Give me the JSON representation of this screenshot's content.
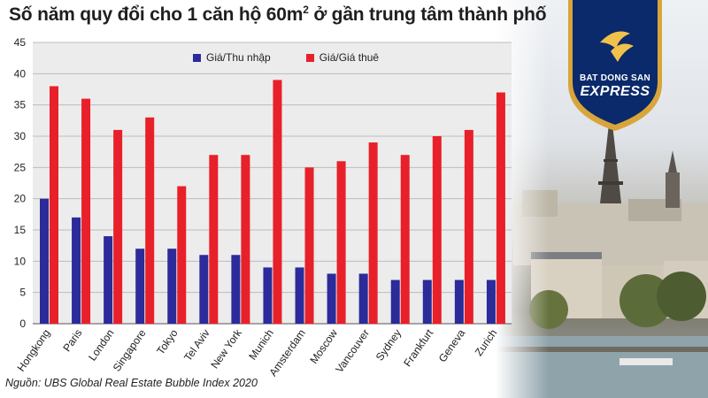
{
  "title_main": "Số năm quy đổi cho 1 căn hộ 60m",
  "title_sup": "2",
  "title_rest": " ở gần trung tâm thành phố",
  "source": "Nguồn: UBS Global Real Estate Bubble Index 2020",
  "logo": {
    "line1": "BAT DONG SAN",
    "line2": "EXPRESS"
  },
  "colors": {
    "income": "#2b2b9a",
    "rent": "#e8202a",
    "grid": "#bdbdbd",
    "chart_bg": "#ececec",
    "logo_blue": "#0b2a6b",
    "logo_gold": "#d9a53a"
  },
  "chart_data": {
    "type": "bar",
    "categories": [
      "Hongkong",
      "Paris",
      "London",
      "Singapore",
      "Tokyo",
      "Tel Aviv",
      "New York",
      "Munich",
      "Amsterdam",
      "Moscow",
      "Vancouver",
      "Sydney",
      "Frankfurt",
      "Geneva",
      "Zurich"
    ],
    "series": [
      {
        "name": "Giá/Thu nhập",
        "values": [
          20,
          17,
          14,
          12,
          12,
          11,
          11,
          9,
          9,
          8,
          8,
          7,
          7,
          7,
          7
        ]
      },
      {
        "name": "Giá/Giá thuê",
        "values": [
          38,
          36,
          31,
          33,
          22,
          27,
          27,
          39,
          25,
          26,
          29,
          27,
          30,
          31,
          37
        ]
      }
    ],
    "ylim": [
      0,
      45
    ],
    "yticks": [
      0,
      5,
      10,
      15,
      20,
      25,
      30,
      35,
      40,
      45
    ],
    "grid": true,
    "legend_position": "top-center",
    "xlabel": "",
    "ylabel": ""
  }
}
